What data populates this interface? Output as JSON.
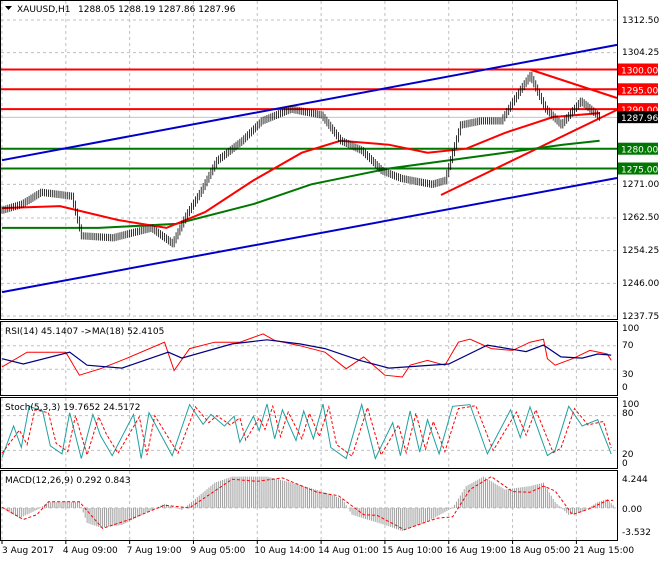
{
  "header": {
    "symbol": "XAUUSD,H1",
    "ohlc": "1288.05 1288.19 1287.86 1287.96"
  },
  "colors": {
    "red": "#ff0000",
    "blue": "#0000cc",
    "green": "#007700",
    "navy": "#000080",
    "teal": "#20a0a0",
    "gray": "#a0a0a0"
  },
  "chart_data": [
    {
      "type": "line",
      "title": "XAUUSD,H1",
      "xlabel": "",
      "ylabel": "",
      "ylim": [
        1237.75,
        1312.5
      ],
      "xlim": [
        0,
        318
      ],
      "y_ticks": [
        "1312.50",
        "1304.25",
        "1271.00",
        "1262.50",
        "1254.25",
        "1246.00",
        "1237.75"
      ],
      "y_tick_values": [
        1312.5,
        1304.25,
        1271.0,
        1262.5,
        1254.25,
        1246.0,
        1237.75
      ],
      "x_ticks": [
        "3 Aug 2017",
        "4 Aug 09:00",
        "7 Aug 19:00",
        "9 Aug 05:00",
        "10 Aug 14:00",
        "14 Aug 01:00",
        "15 Aug 10:00",
        "16 Aug 19:00",
        "18 Aug 05:00",
        "21 Aug 15:00"
      ],
      "x_tick_bars": [
        0,
        33,
        66,
        99,
        132,
        165,
        198,
        231,
        264,
        297
      ],
      "price": [
        [
          0,
          1264.5
        ],
        [
          10,
          1266
        ],
        [
          20,
          1269
        ],
        [
          36,
          1268
        ],
        [
          41,
          1258
        ],
        [
          57,
          1257.5
        ],
        [
          77,
          1260
        ],
        [
          88,
          1256
        ],
        [
          95,
          1263
        ],
        [
          103,
          1269.5
        ],
        [
          111,
          1277
        ],
        [
          124,
          1282
        ],
        [
          134,
          1287
        ],
        [
          149,
          1290
        ],
        [
          165,
          1288.5
        ],
        [
          175,
          1282
        ],
        [
          186,
          1279.5
        ],
        [
          196,
          1274.5
        ],
        [
          206,
          1272.5
        ],
        [
          222,
          1271
        ],
        [
          229,
          1272
        ],
        [
          237,
          1286
        ],
        [
          247,
          1287
        ],
        [
          258,
          1287
        ],
        [
          268,
          1295
        ],
        [
          273,
          1298.5
        ],
        [
          281,
          1290
        ],
        [
          289,
          1286
        ],
        [
          299,
          1292
        ],
        [
          309,
          1287.96
        ]
      ],
      "ma_red": [
        [
          0,
          1265
        ],
        [
          30,
          1265.5
        ],
        [
          60,
          1262
        ],
        [
          85,
          1260
        ],
        [
          105,
          1264
        ],
        [
          130,
          1272
        ],
        [
          155,
          1279
        ],
        [
          175,
          1282
        ],
        [
          200,
          1281
        ],
        [
          220,
          1279
        ],
        [
          240,
          1280
        ],
        [
          260,
          1284
        ],
        [
          285,
          1288
        ],
        [
          309,
          1289
        ]
      ],
      "ma_green": [
        [
          0,
          1260
        ],
        [
          50,
          1260
        ],
        [
          90,
          1261
        ],
        [
          130,
          1266
        ],
        [
          160,
          1271
        ],
        [
          200,
          1275
        ],
        [
          230,
          1277
        ],
        [
          260,
          1279
        ],
        [
          290,
          1281
        ],
        [
          309,
          1282
        ]
      ],
      "channel_upper": [
        [
          0,
          1277.1
        ],
        [
          318,
          1306.2
        ]
      ],
      "channel_lower": [
        [
          0,
          1243.8
        ],
        [
          318,
          1272.6
        ]
      ],
      "triangle_upper": [
        [
          273,
          1300
        ],
        [
          318,
          1292.8
        ]
      ],
      "triangle_lower": [
        [
          227,
          1268.3
        ],
        [
          318,
          1289.8
        ]
      ],
      "levels": [
        {
          "value": 1300.0,
          "label": "1300.00",
          "color": "#ff0000"
        },
        {
          "value": 1295.0,
          "label": "1295.00",
          "color": "#ff0000"
        },
        {
          "value": 1290.0,
          "label": "1290.00",
          "color": "#ff0000"
        },
        {
          "value": 1280.0,
          "label": "1280.00",
          "color": "#007700"
        },
        {
          "value": 1275.0,
          "label": "1275.00",
          "color": "#007700"
        }
      ],
      "current_price": {
        "value": 1287.96,
        "label": "1287.96"
      }
    },
    {
      "type": "line",
      "title": "RSI(14) 45.1407  ->MA(18) 52.4105",
      "ylim": [
        0,
        100
      ],
      "y_ticks": [
        "100",
        "70",
        "30",
        "0"
      ],
      "y_tick_values": [
        100,
        70,
        30,
        0
      ],
      "rsi": [
        [
          0,
          34
        ],
        [
          13,
          59
        ],
        [
          33,
          59
        ],
        [
          40,
          20
        ],
        [
          51,
          31
        ],
        [
          64,
          48
        ],
        [
          84,
          76
        ],
        [
          89,
          28
        ],
        [
          97,
          65
        ],
        [
          110,
          76
        ],
        [
          123,
          76
        ],
        [
          135,
          90
        ],
        [
          141,
          79
        ],
        [
          154,
          70
        ],
        [
          167,
          59
        ],
        [
          178,
          31
        ],
        [
          187,
          51
        ],
        [
          198,
          20
        ],
        [
          207,
          17
        ],
        [
          211,
          37
        ],
        [
          220,
          45
        ],
        [
          229,
          37
        ],
        [
          236,
          76
        ],
        [
          242,
          81
        ],
        [
          253,
          65
        ],
        [
          264,
          62
        ],
        [
          273,
          76
        ],
        [
          280,
          81
        ],
        [
          282,
          48
        ],
        [
          286,
          37
        ],
        [
          295,
          48
        ],
        [
          304,
          62
        ],
        [
          313,
          56
        ],
        [
          315,
          45
        ]
      ],
      "ma": [
        [
          0,
          48
        ],
        [
          11,
          39
        ],
        [
          35,
          59
        ],
        [
          44,
          37
        ],
        [
          62,
          32
        ],
        [
          86,
          59
        ],
        [
          93,
          49
        ],
        [
          119,
          73
        ],
        [
          137,
          80
        ],
        [
          154,
          73
        ],
        [
          167,
          65
        ],
        [
          185,
          45
        ],
        [
          200,
          32
        ],
        [
          231,
          39
        ],
        [
          251,
          71
        ],
        [
          271,
          60
        ],
        [
          280,
          71
        ],
        [
          289,
          51
        ],
        [
          300,
          49
        ],
        [
          308,
          56
        ],
        [
          315,
          54
        ]
      ]
    },
    {
      "type": "line",
      "title": "Stoch(5,3,3) 19.7652 24.5172",
      "ylim": [
        0,
        100
      ],
      "y_ticks": [
        "100",
        "80",
        "20",
        "0"
      ],
      "y_tick_values": [
        100,
        80,
        20,
        0
      ],
      "main": [
        [
          0,
          8
        ],
        [
          6,
          62
        ],
        [
          10,
          25
        ],
        [
          14,
          96
        ],
        [
          21,
          88
        ],
        [
          25,
          28
        ],
        [
          31,
          14
        ],
        [
          35,
          85
        ],
        [
          41,
          6
        ],
        [
          47,
          82
        ],
        [
          51,
          45
        ],
        [
          57,
          11
        ],
        [
          68,
          82
        ],
        [
          72,
          6
        ],
        [
          76,
          85
        ],
        [
          88,
          11
        ],
        [
          97,
          99
        ],
        [
          104,
          65
        ],
        [
          108,
          82
        ],
        [
          115,
          62
        ],
        [
          120,
          79
        ],
        [
          123,
          34
        ],
        [
          130,
          79
        ],
        [
          133,
          54
        ],
        [
          137,
          100
        ],
        [
          141,
          40
        ],
        [
          145,
          90
        ],
        [
          152,
          37
        ],
        [
          156,
          88
        ],
        [
          161,
          40
        ],
        [
          166,
          100
        ],
        [
          170,
          25
        ],
        [
          178,
          6
        ],
        [
          186,
          99
        ],
        [
          193,
          6
        ],
        [
          202,
          68
        ],
        [
          206,
          11
        ],
        [
          211,
          88
        ],
        [
          216,
          17
        ],
        [
          220,
          73
        ],
        [
          226,
          14
        ],
        [
          233,
          96
        ],
        [
          242,
          99
        ],
        [
          251,
          14
        ],
        [
          263,
          90
        ],
        [
          268,
          42
        ],
        [
          273,
          95
        ],
        [
          282,
          11
        ],
        [
          286,
          20
        ],
        [
          293,
          96
        ],
        [
          300,
          62
        ],
        [
          308,
          73
        ],
        [
          315,
          14
        ]
      ],
      "signal": [
        [
          0,
          15
        ],
        [
          9,
          55
        ],
        [
          13,
          30
        ],
        [
          17,
          90
        ],
        [
          24,
          85
        ],
        [
          28,
          32
        ],
        [
          34,
          18
        ],
        [
          38,
          80
        ],
        [
          44,
          12
        ],
        [
          50,
          78
        ],
        [
          54,
          48
        ],
        [
          60,
          15
        ],
        [
          71,
          78
        ],
        [
          75,
          12
        ],
        [
          79,
          80
        ],
        [
          91,
          15
        ],
        [
          100,
          95
        ],
        [
          107,
          68
        ],
        [
          111,
          80
        ],
        [
          118,
          64
        ],
        [
          123,
          76
        ],
        [
          126,
          38
        ],
        [
          133,
          76
        ],
        [
          136,
          56
        ],
        [
          140,
          96
        ],
        [
          144,
          44
        ],
        [
          148,
          86
        ],
        [
          155,
          40
        ],
        [
          159,
          84
        ],
        [
          164,
          44
        ],
        [
          169,
          95
        ],
        [
          173,
          30
        ],
        [
          181,
          10
        ],
        [
          189,
          94
        ],
        [
          196,
          12
        ],
        [
          205,
          64
        ],
        [
          209,
          16
        ],
        [
          214,
          84
        ],
        [
          219,
          22
        ],
        [
          223,
          70
        ],
        [
          229,
          18
        ],
        [
          236,
          92
        ],
        [
          245,
          97
        ],
        [
          254,
          20
        ],
        [
          266,
          86
        ],
        [
          271,
          46
        ],
        [
          276,
          90
        ],
        [
          285,
          16
        ],
        [
          289,
          24
        ],
        [
          296,
          92
        ],
        [
          303,
          64
        ],
        [
          311,
          70
        ],
        [
          315,
          24
        ]
      ]
    },
    {
      "type": "bar",
      "title": "MACD(12,26,9) 0.292 0.843",
      "ylim": [
        -3.532,
        4.244
      ],
      "y_ticks": [
        "4.244",
        "0.00",
        "-3.532"
      ],
      "y_tick_values": [
        4.244,
        0,
        -3.532
      ],
      "histogram": [
        [
          0,
          0
        ],
        [
          9,
          -1.5
        ],
        [
          18,
          -0.3
        ],
        [
          24,
          0.85
        ],
        [
          40,
          0.85
        ],
        [
          44,
          -2.2
        ],
        [
          51,
          -2.9
        ],
        [
          62,
          -2.5
        ],
        [
          84,
          0.6
        ],
        [
          93,
          -0.3
        ],
        [
          99,
          1.1
        ],
        [
          110,
          3.7
        ],
        [
          119,
          4.6
        ],
        [
          137,
          4.6
        ],
        [
          150,
          3.7
        ],
        [
          167,
          2.3
        ],
        [
          176,
          1.3
        ],
        [
          181,
          -1.0
        ],
        [
          198,
          -2.5
        ],
        [
          207,
          -3.4
        ],
        [
          220,
          -2.0
        ],
        [
          233,
          0
        ],
        [
          240,
          3.2
        ],
        [
          249,
          4.6
        ],
        [
          260,
          2.7
        ],
        [
          273,
          3.2
        ],
        [
          280,
          3.7
        ],
        [
          286,
          0.85
        ],
        [
          293,
          -1.0
        ],
        [
          300,
          -0.6
        ],
        [
          308,
          0.85
        ],
        [
          313,
          1.3
        ],
        [
          316,
          0.4
        ]
      ],
      "signal": [
        [
          0,
          0.1
        ],
        [
          11,
          -1.7
        ],
        [
          18,
          -1.0
        ],
        [
          24,
          0.9
        ],
        [
          40,
          0.9
        ],
        [
          52,
          -3.0
        ],
        [
          66,
          -1.7
        ],
        [
          84,
          0.4
        ],
        [
          97,
          0
        ],
        [
          119,
          4.2
        ],
        [
          132,
          3.9
        ],
        [
          145,
          4.4
        ],
        [
          163,
          2.3
        ],
        [
          174,
          1.8
        ],
        [
          187,
          -1.0
        ],
        [
          194,
          -1.1
        ],
        [
          208,
          -3.2
        ],
        [
          225,
          -1.5
        ],
        [
          233,
          -1.3
        ],
        [
          242,
          2.7
        ],
        [
          253,
          4.6
        ],
        [
          264,
          2.4
        ],
        [
          273,
          2.3
        ],
        [
          280,
          3.2
        ],
        [
          286,
          2.5
        ],
        [
          295,
          -1.0
        ],
        [
          304,
          -0.1
        ],
        [
          313,
          1.1
        ],
        [
          316,
          1.1
        ]
      ]
    }
  ]
}
